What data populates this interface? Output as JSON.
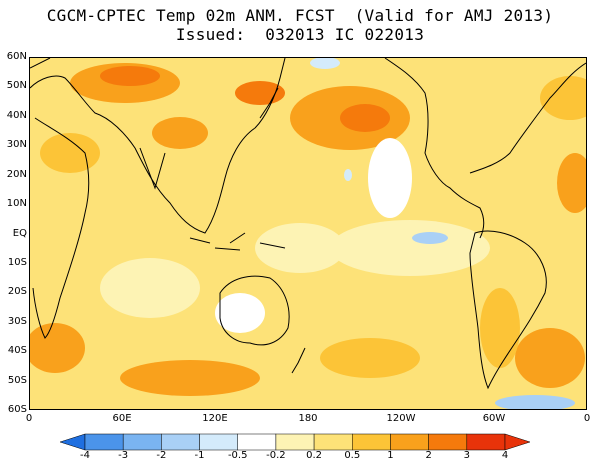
{
  "header": {
    "title_line1": "CGCM-CPTEC Temp 02m ANM. FCST  (Valid for AMJ 2013)",
    "title_line2": "Issued:  032013 IC 022013"
  },
  "axes": {
    "lat_labels": [
      "60N",
      "50N",
      "40N",
      "30N",
      "20N",
      "10N",
      "EQ",
      "10S",
      "20S",
      "30S",
      "40S",
      "50S",
      "60S"
    ],
    "lon_labels": [
      "0",
      "60E",
      "120E",
      "180",
      "120W",
      "60W",
      "0"
    ]
  },
  "colorbar": {
    "labels": [
      "-4",
      "-3",
      "-2",
      "-1",
      "-0.5",
      "-0.2",
      "0.2",
      "0.5",
      "1",
      "2",
      "3",
      "4"
    ],
    "colors": [
      "#1f6fe0",
      "#4b94ea",
      "#7ab4f1",
      "#a9d0f6",
      "#d4ebfb",
      "#ffffff",
      "#fdf3b4",
      "#fde278",
      "#fcc437",
      "#f9a11c",
      "#f57a0c",
      "#e8330a"
    ]
  },
  "legend_colors": {
    "land_outline": "#000000",
    "anomaly_weak": "#fdf3b4",
    "anomaly_moderate": "#fcc437",
    "anomaly_strong": "#f57a0c",
    "anomaly_negative": "#a9d0f6"
  }
}
